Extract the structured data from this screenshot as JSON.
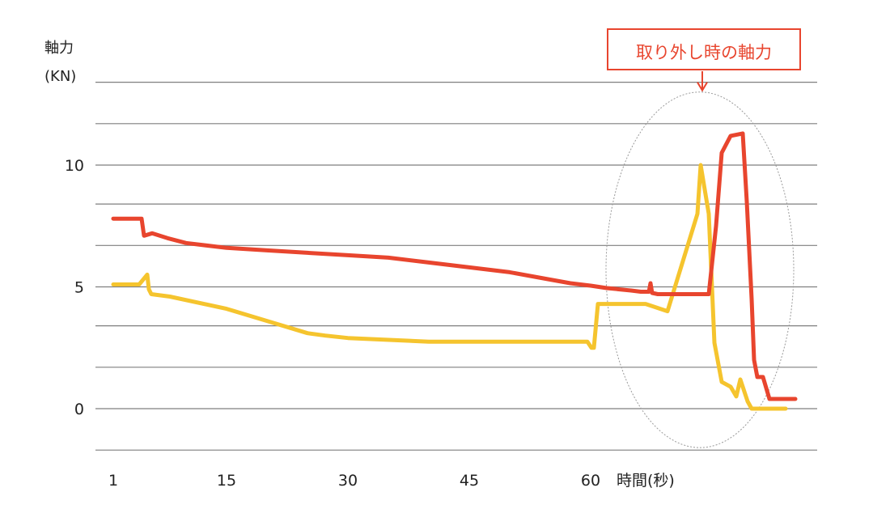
{
  "chart_data": {
    "type": "line",
    "ylabel": "軸力",
    "yunit": "(KN)",
    "xlabel": "時間(秒)",
    "xlim": [
      1,
      85.3
    ],
    "ylim": [
      -1.7,
      13.4
    ],
    "x_ticks": [
      1,
      15,
      30,
      45,
      60
    ],
    "x_tick_labels": [
      "1",
      "15",
      "30",
      "45",
      "60"
    ],
    "y_ticks": [
      0,
      5,
      10
    ],
    "y_tick_labels": [
      "0",
      "5",
      "10"
    ],
    "gridlines_y": [
      -1.7,
      0,
      1.7,
      3.4,
      5,
      6.7,
      8.4,
      10,
      11.7,
      13.4
    ],
    "grid": true,
    "annotation": {
      "text": "取り外し時の軸力",
      "color": "#e8452e",
      "highlight": "ellipse",
      "center": [
        73.5,
        5.7
      ],
      "radius": [
        11.6,
        7.3
      ]
    },
    "series": [
      {
        "color": "#e8452e",
        "x": [
          1,
          2.2,
          4.2,
          4.5,
          4.8,
          5.8,
          7.7,
          10,
          15,
          20,
          25,
          30,
          35,
          40,
          45,
          50,
          55,
          57.5,
          60,
          62,
          65,
          66.2,
          67.2,
          67.4,
          67.6,
          68.3,
          70,
          74.6,
          75.5,
          76.2,
          77.3,
          78.8,
          79.3,
          79.9,
          80.2,
          80.6,
          81.3,
          82.1,
          83,
          84.1,
          85.3
        ],
        "y": [
          7.8,
          7.8,
          7.8,
          7.8,
          7.1,
          7.2,
          7.0,
          6.8,
          6.6,
          6.5,
          6.4,
          6.3,
          6.2,
          6.0,
          5.8,
          5.6,
          5.3,
          5.15,
          5.05,
          4.95,
          4.85,
          4.8,
          4.8,
          5.15,
          4.75,
          4.7,
          4.7,
          4.7,
          7.5,
          10.5,
          11.2,
          11.3,
          8.5,
          4.5,
          2.0,
          1.3,
          1.3,
          0.4,
          0.4,
          0.4,
          0.4
        ]
      },
      {
        "color": "#f5c42e",
        "x": [
          1,
          2.2,
          4.2,
          5.2,
          5.4,
          5.7,
          8,
          15,
          20,
          25,
          27.2,
          30,
          40,
          50,
          58.5,
          59.6,
          60.1,
          60.4,
          60.9,
          61.5,
          64,
          66.8,
          69.5,
          73.2,
          73.6,
          74.6,
          75.3,
          76.2,
          77.3,
          78,
          78.5,
          79.4,
          79.9,
          80.5,
          81,
          81.8,
          82.9,
          84.1
        ],
        "y": [
          5.1,
          5.1,
          5.1,
          5.5,
          4.9,
          4.7,
          4.6,
          4.1,
          3.6,
          3.1,
          3.0,
          2.9,
          2.75,
          2.75,
          2.75,
          2.75,
          2.5,
          2.5,
          4.3,
          4.3,
          4.3,
          4.3,
          4.0,
          8.0,
          10.0,
          8.0,
          2.7,
          1.1,
          0.9,
          0.5,
          1.2,
          0.3,
          0.0,
          0.0,
          0.0,
          0.0,
          0.0,
          0.0
        ]
      }
    ]
  }
}
